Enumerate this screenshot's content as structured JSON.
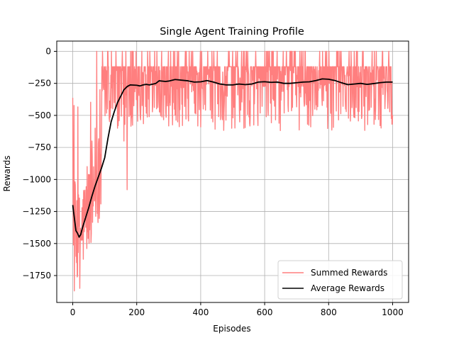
{
  "chart_data": {
    "type": "line",
    "title": "Single Agent Training Profile",
    "xlabel": "Episodes",
    "ylabel": "Rewards",
    "xlim": [
      -50,
      1050
    ],
    "ylim": [
      -1960,
      80
    ],
    "x_ticks": [
      0,
      200,
      400,
      600,
      800,
      1000
    ],
    "y_ticks": [
      0,
      -250,
      -500,
      -750,
      -1000,
      -1250,
      -1500,
      -1750
    ],
    "x_tick_labels": [
      "0",
      "200",
      "400",
      "600",
      "800",
      "1000"
    ],
    "y_tick_labels": [
      "0",
      "−250",
      "−500",
      "−750",
      "−1000",
      "−1250",
      "−1500",
      "−1750"
    ],
    "grid": true,
    "legend_position": "bottom-right",
    "series": [
      {
        "name": "Summed Rewards",
        "color": "#ff7f7f",
        "kind": "noisy",
        "generator": {
          "episodes": 1000,
          "pool": [
            -120,
            -140,
            -160,
            -190,
            -230,
            -280,
            -330,
            -400,
            -520,
            -560,
            -590,
            0,
            -100
          ],
          "spikes": [
            [
              5,
              -1870
            ],
            [
              10,
              -1600
            ],
            [
              15,
              -1750
            ],
            [
              22,
              -1850
            ],
            [
              30,
              -1400
            ],
            [
              40,
              -1200
            ],
            [
              45,
              -900
            ],
            [
              55,
              -1000
            ],
            [
              60,
              -700
            ],
            [
              70,
              -600
            ],
            [
              75,
              0
            ],
            [
              90,
              -750
            ],
            [
              110,
              0
            ],
            [
              130,
              -400
            ],
            [
              140,
              -600
            ],
            [
              160,
              -700
            ],
            [
              170,
              -1080
            ],
            [
              180,
              -500
            ]
          ]
        }
      },
      {
        "name": "Average Rewards",
        "color": "#000000",
        "kind": "smooth",
        "points": [
          [
            0,
            -1200
          ],
          [
            5,
            -1300
          ],
          [
            10,
            -1400
          ],
          [
            15,
            -1420
          ],
          [
            20,
            -1450
          ],
          [
            25,
            -1430
          ],
          [
            30,
            -1380
          ],
          [
            40,
            -1300
          ],
          [
            50,
            -1220
          ],
          [
            60,
            -1130
          ],
          [
            70,
            -1050
          ],
          [
            80,
            -980
          ],
          [
            90,
            -910
          ],
          [
            100,
            -830
          ],
          [
            110,
            -680
          ],
          [
            120,
            -550
          ],
          [
            130,
            -470
          ],
          [
            140,
            -400
          ],
          [
            150,
            -350
          ],
          [
            160,
            -300
          ],
          [
            170,
            -275
          ],
          [
            180,
            -262
          ],
          [
            200,
            -265
          ],
          [
            210,
            -270
          ],
          [
            220,
            -262
          ],
          [
            230,
            -258
          ],
          [
            240,
            -262
          ],
          [
            260,
            -250
          ],
          [
            270,
            -230
          ],
          [
            290,
            -235
          ],
          [
            300,
            -232
          ],
          [
            320,
            -220
          ],
          [
            340,
            -225
          ],
          [
            360,
            -230
          ],
          [
            380,
            -240
          ],
          [
            400,
            -238
          ],
          [
            420,
            -228
          ],
          [
            440,
            -240
          ],
          [
            460,
            -255
          ],
          [
            480,
            -262
          ],
          [
            500,
            -262
          ],
          [
            520,
            -255
          ],
          [
            540,
            -260
          ],
          [
            560,
            -255
          ],
          [
            580,
            -240
          ],
          [
            600,
            -237
          ],
          [
            620,
            -242
          ],
          [
            640,
            -240
          ],
          [
            660,
            -250
          ],
          [
            680,
            -250
          ],
          [
            700,
            -245
          ],
          [
            720,
            -240
          ],
          [
            740,
            -238
          ],
          [
            760,
            -228
          ],
          [
            780,
            -215
          ],
          [
            800,
            -218
          ],
          [
            820,
            -228
          ],
          [
            840,
            -245
          ],
          [
            860,
            -260
          ],
          [
            880,
            -255
          ],
          [
            900,
            -250
          ],
          [
            920,
            -258
          ],
          [
            940,
            -252
          ],
          [
            960,
            -245
          ],
          [
            980,
            -240
          ],
          [
            1000,
            -240
          ]
        ]
      }
    ]
  }
}
